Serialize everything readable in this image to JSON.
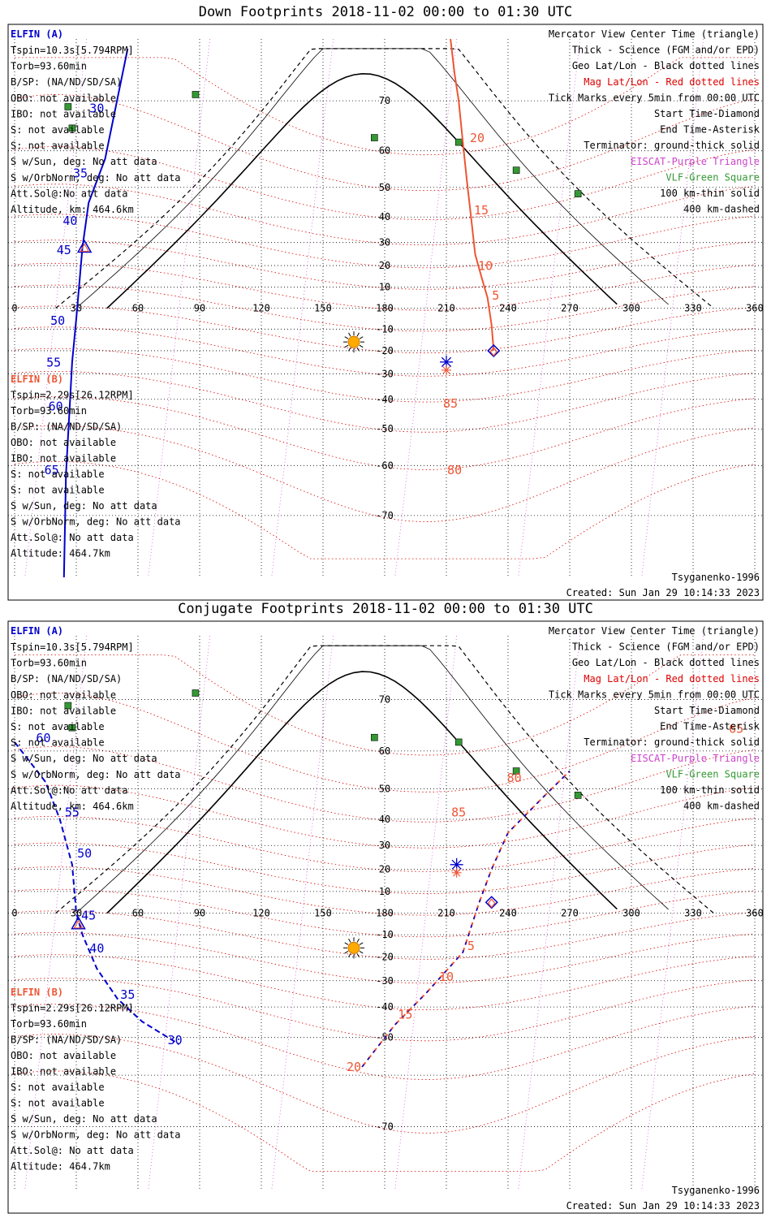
{
  "colors": {
    "elfin_a": "#0000cc",
    "elfin_b": "#ee5533",
    "mag_grid": "#dd0000",
    "geo_grid": "#000000",
    "eiscat": "#cc44cc",
    "vlf": "#339933",
    "coast": "#888888",
    "sun": "#ffaa00"
  },
  "chart_data": [
    {
      "type": "map",
      "title": "Down Footprints 2018-11-02 00:00 to 01:30 UTC",
      "projection": "mercator",
      "x_ticks": [
        "0",
        "30",
        "60",
        "90",
        "120",
        "150",
        "180",
        "210",
        "240",
        "270",
        "300",
        "330",
        "360"
      ],
      "lat_ticks": [
        "70",
        "60",
        "50",
        "40",
        "30",
        "20",
        "10",
        "-10",
        "-20",
        "-30",
        "-40",
        "-50",
        "-60",
        "-70"
      ],
      "lon_range": [
        0,
        360
      ],
      "lat_range": [
        -78,
        78
      ],
      "legend": [
        {
          "text": "Mercator View Center Time (triangle)",
          "color": "#000000"
        },
        {
          "text": "Thick - Science (FGM and/or EPD)",
          "color": "#000000"
        },
        {
          "text": "Geo Lat/Lon - Black dotted lines",
          "color": "#000000"
        },
        {
          "text": "Mag Lat/Lon - Red dotted lines",
          "color": "#dd0000"
        },
        {
          "text": "Tick Marks every 5min from 00:00 UTC",
          "color": "#000000"
        },
        {
          "text": "Start Time-Diamond",
          "color": "#000000"
        },
        {
          "text": "End Time-Asterisk",
          "color": "#000000"
        },
        {
          "text": "Terminator: ground-thick solid",
          "color": "#000000"
        },
        {
          "text": "EISCAT-Purple Triangle",
          "color": "#cc44cc"
        },
        {
          "text": "VLF-Green Square",
          "color": "#339933"
        },
        {
          "text": "100 km-thin solid",
          "color": "#000000"
        },
        {
          "text": "400 km-dashed",
          "color": "#000000"
        }
      ],
      "info_a": {
        "name": "ELFIN (A)",
        "lines": [
          "Tspin=10.3s[5.794RPM]",
          "Torb=93.60min",
          "B/SP: (NA/ND/SD/SA)",
          "OBO: not available",
          "IBO: not available",
          "S: not available",
          "S: not available",
          "S w/Sun, deg: No att data",
          "S w/OrbNorm, deg: No att data",
          "Att.Sol@:No att data",
          "Altitude, km: 464.6km"
        ]
      },
      "info_b": {
        "name": "ELFIN (B)",
        "lines": [
          "Tspin=2.29s[26.12RPM]",
          "Torb=93.60min",
          "B/SP: (NA/ND/SD/SA)",
          "OBO: not available",
          "IBO: not available",
          "S: not available",
          "S: not available",
          "S w/Sun, deg: No att data",
          "S w/OrbNorm, deg: No att data",
          "Att.Sol@: No att data",
          "Altitude: 464.7km"
        ]
      },
      "footer_left": "Tsyganenko-1996",
      "footer_right": "Created: Sun Jan 29 10:14:33 2023",
      "series": [
        {
          "name": "ELFIN (A)",
          "color": "#0000cc",
          "lon": [
            55,
            44,
            36,
            33,
            30,
            28,
            27,
            26,
            25,
            24
          ],
          "lat": [
            77,
            58,
            45,
            28,
            -5,
            -25,
            -40,
            -52,
            -62,
            -78
          ],
          "labels": [
            {
              "text": "30",
              "lon": 40,
              "lat": 68
            },
            {
              "text": "35",
              "lon": 32,
              "lat": 53
            },
            {
              "text": "40",
              "lon": 27,
              "lat": 37
            },
            {
              "text": "45",
              "lon": 24,
              "lat": 25
            },
            {
              "text": "50",
              "lon": 21,
              "lat": -8
            },
            {
              "text": "55",
              "lon": 19,
              "lat": -27
            },
            {
              "text": "60",
              "lon": 20,
              "lat": -44
            },
            {
              "text": "65",
              "lon": 18,
              "lat": -62
            }
          ]
        },
        {
          "name": "ELFIN (B)",
          "color": "#ee5533",
          "lon": [
            233,
            232,
            230,
            227,
            224,
            222,
            220,
            218,
            216,
            214,
            212
          ],
          "lat": [
            -20,
            -8,
            5,
            15,
            25,
            40,
            52,
            62,
            70,
            74,
            78
          ],
          "labels": [
            {
              "text": "5",
              "lon": 234,
              "lat": 4
            },
            {
              "text": "10",
              "lon": 229,
              "lat": 18
            },
            {
              "text": "15",
              "lon": 227,
              "lat": 41
            },
            {
              "text": "20",
              "lon": 225,
              "lat": 62
            },
            {
              "text": "85",
              "lon": 212,
              "lat": -43
            },
            {
              "text": "80",
              "lon": 214,
              "lat": -62
            }
          ]
        }
      ],
      "markers": [
        {
          "name": "sun",
          "lon": 165,
          "lat": -16
        },
        {
          "name": "start-diamond",
          "lon": 233,
          "lat": -20
        },
        {
          "name": "end-asterisk",
          "lon": 210,
          "lat": -25
        },
        {
          "name": "center-triangle",
          "lon": 34,
          "lat": 28
        }
      ],
      "vlf_stations": [
        [
          88,
          71
        ],
        [
          175,
          63
        ],
        [
          216,
          62
        ],
        [
          244,
          55
        ],
        [
          274,
          48
        ],
        [
          26,
          69
        ],
        [
          28,
          65
        ]
      ]
    },
    {
      "type": "map",
      "title": "Conjugate Footprints 2018-11-02 00:00 to 01:30 UTC",
      "projection": "mercator",
      "x_ticks": [
        "0",
        "30",
        "60",
        "90",
        "120",
        "150",
        "180",
        "210",
        "240",
        "270",
        "300",
        "330",
        "360"
      ],
      "lat_ticks": [
        "70",
        "60",
        "50",
        "40",
        "30",
        "20",
        "10",
        "-10",
        "-20",
        "-30",
        "-40",
        "-50",
        "-70"
      ],
      "lon_range": [
        0,
        360
      ],
      "lat_range": [
        -78,
        78
      ],
      "legend": [
        {
          "text": "Mercator View Center Time (triangle)",
          "color": "#000000"
        },
        {
          "text": "Thick - Science (FGM and/or EPD)",
          "color": "#000000"
        },
        {
          "text": "Geo Lat/Lon - Black dotted lines",
          "color": "#000000"
        },
        {
          "text": "Mag Lat/Lon - Red dotted lines",
          "color": "#dd0000"
        },
        {
          "text": "Tick Marks every 5min from 00:00 UTC",
          "color": "#000000"
        },
        {
          "text": "Start Time-Diamond",
          "color": "#000000"
        },
        {
          "text": "End Time-Asterisk",
          "color": "#000000"
        },
        {
          "text": "Terminator: ground-thick solid",
          "color": "#000000"
        },
        {
          "text": "EISCAT-Purple Triangle",
          "color": "#cc44cc"
        },
        {
          "text": "VLF-Green Square",
          "color": "#339933"
        },
        {
          "text": "100 km-thin solid",
          "color": "#000000"
        },
        {
          "text": "400 km-dashed",
          "color": "#000000"
        }
      ],
      "info_a": {
        "name": "ELFIN (A)",
        "lines": [
          "Tspin=10.3s[5.794RPM]",
          "Torb=93.60min",
          "B/SP: (NA/ND/SD/SA)",
          "OBO: not available",
          "IBO: not available",
          "S: not available",
          "S: not available",
          "S w/Sun, deg: No att data",
          "S w/OrbNorm, deg: No att data",
          "Att.Sol@:No att data",
          "Altitude, km: 464.6km"
        ]
      },
      "info_b": {
        "name": "ELFIN (B)",
        "lines": [
          "Tspin=2.29s[26.12RPM]",
          "Torb=93.60min",
          "B/SP: (NA/ND/SD/SA)",
          "OBO: not available",
          "IBO: not available",
          "S: not available",
          "S: not available",
          "S w/Sun, deg: No att data",
          "S w/OrbNorm, deg: No att data",
          "Att.Sol@: No att data",
          "Altitude: 464.7km"
        ]
      },
      "footer_left": "Tsyganenko-1996",
      "footer_right": "Created: Sun Jan 29 10:14:33 2023",
      "series": [
        {
          "name": "ELFIN (A)",
          "color": "#0000cc",
          "dashed": true,
          "lon": [
            0,
            15,
            22,
            28,
            30,
            33,
            40,
            50,
            62,
            80
          ],
          "lat": [
            62,
            52,
            40,
            22,
            0,
            -10,
            -25,
            -37,
            -45,
            -52
          ],
          "labels": [
            {
              "text": "60",
              "lon": 14,
              "lat": 62
            },
            {
              "text": "55",
              "lon": 28,
              "lat": 41
            },
            {
              "text": "50",
              "lon": 34,
              "lat": 25
            },
            {
              "text": "45",
              "lon": 36,
              "lat": -3
            },
            {
              "text": "40",
              "lon": 40,
              "lat": -18
            },
            {
              "text": "35",
              "lon": 55,
              "lat": -37
            },
            {
              "text": "30",
              "lon": 78,
              "lat": -52
            }
          ]
        },
        {
          "name": "ELFIN (B)",
          "color": "#ee5533",
          "dashed": true,
          "lon": [
            169,
            185,
            200,
            218,
            226,
            232,
            240,
            258,
            270
          ],
          "lat": [
            -58,
            -46,
            -35,
            -18,
            5,
            20,
            35,
            48,
            55
          ],
          "labels": [
            {
              "text": "5",
              "lon": 222,
              "lat": -17
            },
            {
              "text": "10",
              "lon": 210,
              "lat": -30
            },
            {
              "text": "15",
              "lon": 190,
              "lat": -44
            },
            {
              "text": "20",
              "lon": 165,
              "lat": -59
            },
            {
              "text": "85",
              "lon": 216,
              "lat": 41
            },
            {
              "text": "80",
              "lon": 243,
              "lat": 52
            },
            {
              "text": "65",
              "lon": 351,
              "lat": 64
            }
          ]
        }
      ],
      "markers": [
        {
          "name": "sun",
          "lon": 165,
          "lat": -16
        },
        {
          "name": "start-diamond",
          "lon": 232,
          "lat": 5
        },
        {
          "name": "end-asterisk",
          "lon": 215,
          "lat": 22
        },
        {
          "name": "center-triangle",
          "lon": 31,
          "lat": -5
        }
      ],
      "vlf_stations": [
        [
          88,
          71
        ],
        [
          175,
          63
        ],
        [
          216,
          62
        ],
        [
          244,
          55
        ],
        [
          274,
          48
        ],
        [
          26,
          69
        ],
        [
          28,
          65
        ]
      ]
    }
  ]
}
